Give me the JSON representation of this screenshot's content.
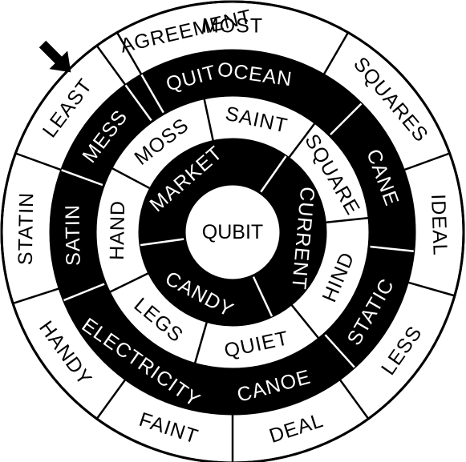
{
  "puzzle": {
    "center_word": "QUBIT",
    "colors": {
      "ink": "#000000",
      "paper": "#ffffff"
    },
    "pointer_icon": "arrow-pointer-icon",
    "rings": [
      {
        "name": "outer",
        "fill": "white",
        "words": [
          "MOST",
          "SQUARES",
          "IDEAL",
          "LESS",
          "DEAL",
          "FAINT",
          "HANDY",
          "STATIN",
          "LEAST",
          "AGREEMENT"
        ]
      },
      {
        "name": "second",
        "fill": "black",
        "words": [
          "OCEAN",
          "CANE",
          "STATIC",
          "CANOE",
          "ELECTRICITY",
          "SATIN",
          "MESS",
          "QUIT"
        ]
      },
      {
        "name": "third",
        "fill": "white",
        "words": [
          "SAINT",
          "SQUARE",
          "HIND",
          "QUIET",
          "LEGS",
          "HAND",
          "MOSS"
        ]
      },
      {
        "name": "inner",
        "fill": "black",
        "words": [
          "CURRENT",
          "CANDY",
          "MARKET"
        ]
      }
    ]
  }
}
